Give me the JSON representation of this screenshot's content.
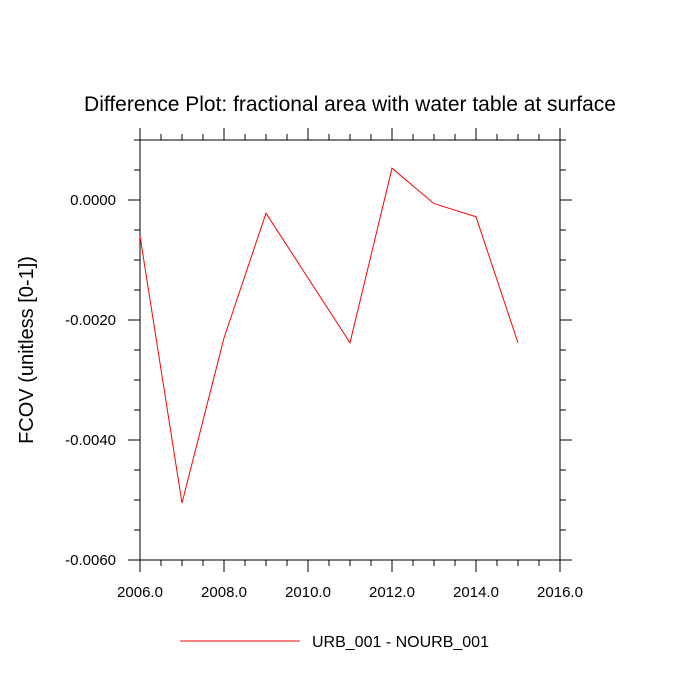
{
  "chart_data": {
    "type": "line",
    "title": "Difference Plot: fractional area with water table at surface",
    "xlabel": "",
    "ylabel": "FCOV  (unitless [0-1])",
    "xlim": [
      2006.0,
      2016.0
    ],
    "ylim": [
      -0.006,
      0.001
    ],
    "xticks": [
      2006.0,
      2008.0,
      2010.0,
      2012.0,
      2014.0,
      2016.0
    ],
    "xtick_labels": [
      "2006.0",
      "2008.0",
      "2010.0",
      "2012.0",
      "2014.0",
      "2016.0"
    ],
    "yticks": [
      0.0,
      -0.002,
      -0.004,
      -0.006
    ],
    "ytick_labels": [
      "0.0000",
      "-0.0020",
      "-0.0040",
      "-0.0060"
    ],
    "grid": false,
    "legend_position": "bottom-center",
    "series": [
      {
        "name": "URB_001 - NOURB_001",
        "color": "#ff0000",
        "x": [
          2006,
          2007,
          2008,
          2009,
          2010,
          2011,
          2012,
          2013,
          2014,
          2015
        ],
        "y": [
          -0.0006,
          -0.00505,
          -0.0023,
          -0.00022,
          -0.0013,
          -0.00238,
          0.00053,
          -6e-05,
          -0.00028,
          -0.00238
        ]
      }
    ]
  }
}
